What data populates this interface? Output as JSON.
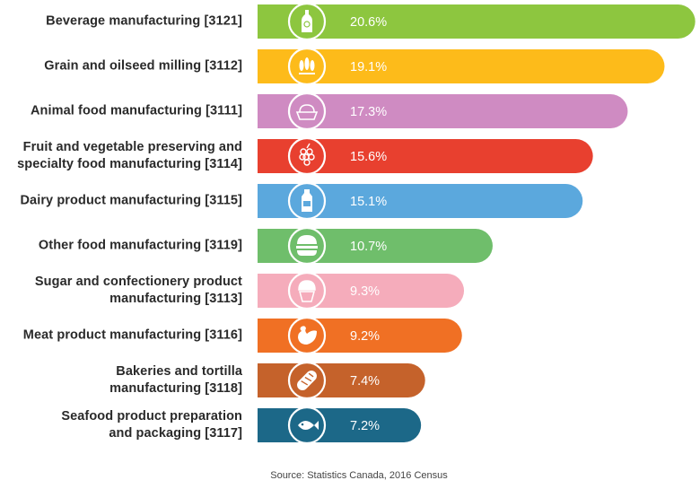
{
  "chart_data": {
    "type": "bar",
    "orientation": "horizontal",
    "unit": "%",
    "categories": [
      "Beverage manufacturing  [3121]",
      "Grain and oilseed milling  [3112]",
      "Animal food manufacturing  [3111]",
      "Fruit and vegetable preserving and\nspecialty food manufacturing  [3114]",
      "Dairy product manufacturing  [3115]",
      "Other food manufacturing  [3119]",
      "Sugar and confectionery product\nmanufacturing [3113]",
      "Meat product manufacturing  [3116]",
      "Bakeries and tortilla\nmanufacturing  [3118]",
      "Seafood product preparation\nand packaging  [3117]"
    ],
    "values": [
      20.6,
      19.1,
      17.3,
      15.6,
      15.1,
      10.7,
      9.3,
      9.2,
      7.4,
      7.2
    ],
    "value_labels": [
      "20.6%",
      "19.1%",
      "17.3%",
      "15.6%",
      "15.1%",
      "10.7%",
      "9.3%",
      "9.2%",
      "7.4%",
      "7.2%"
    ],
    "colors": [
      "#8dc63f",
      "#fdbb1a",
      "#cf8bc2",
      "#e8402f",
      "#5ba8dd",
      "#6fbe6b",
      "#f5acbb",
      "#f07024",
      "#c5622b",
      "#1c6888"
    ],
    "icons": [
      "bottle-icon",
      "wheat-icon",
      "pet-bowl-icon",
      "grapes-icon",
      "milk-bottle-icon",
      "burger-icon",
      "cupcake-icon",
      "chicken-icon",
      "bread-icon",
      "fish-icon"
    ],
    "source": "Source: Statistics Canada, 2016 Census"
  }
}
